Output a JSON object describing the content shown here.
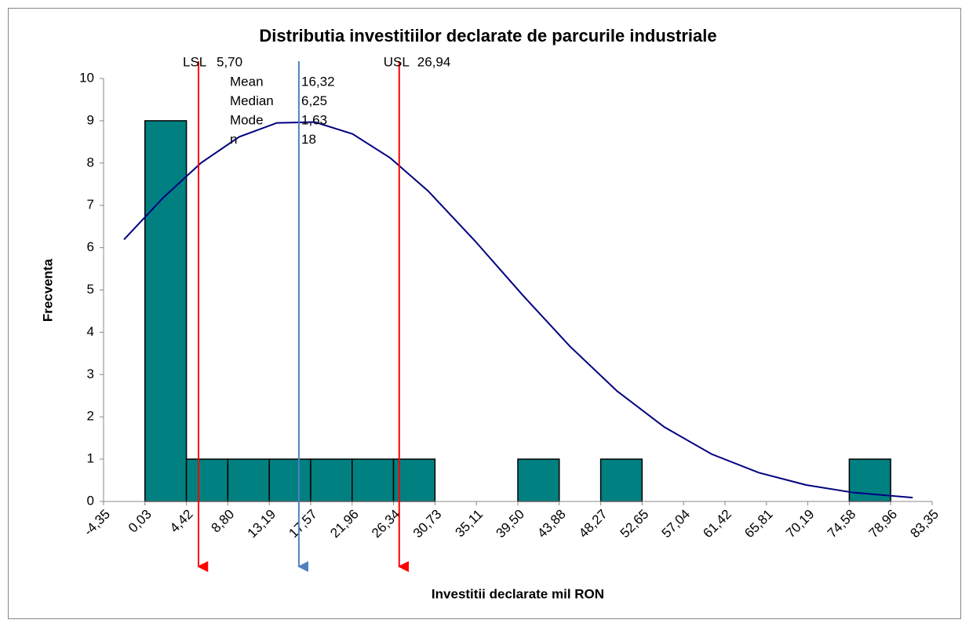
{
  "chart_data": {
    "type": "histogram",
    "title": "Distributia investitiilor declarate de parcurile industriale",
    "x_label": "Investitii declarate mil RON",
    "y_label": "Frecventa",
    "bins": [
      0.03,
      4.42,
      8.8,
      13.19,
      17.57,
      21.96,
      26.34,
      30.73,
      35.11,
      39.5,
      43.88,
      48.27,
      52.65,
      57.04,
      61.42,
      65.81,
      70.19,
      74.58,
      78.96
    ],
    "values": [
      9,
      1,
      1,
      1,
      1,
      1,
      1,
      0,
      0,
      1,
      0,
      1,
      0,
      0,
      0,
      0,
      0,
      1
    ],
    "color": "#008080",
    "curve": {
      "color": "#000080",
      "x": [
        -2.19,
        2,
        6,
        10,
        14,
        18,
        22,
        26,
        30,
        35,
        40,
        45,
        50,
        55,
        60,
        65,
        70,
        75,
        81.3
      ],
      "values": [
        6.19,
        7.19,
        8.01,
        8.62,
        8.95,
        8.97,
        8.69,
        8.12,
        7.34,
        6.15,
        4.88,
        3.67,
        2.61,
        1.76,
        1.12,
        0.68,
        0.39,
        0.21,
        0.09
      ]
    },
    "lines": [
      {
        "name": "LSL",
        "value": 5.7,
        "label": "5,70",
        "color": "#ff0000"
      },
      {
        "name": "USL",
        "value": 26.94,
        "label": "26,94",
        "color": "#ff0000"
      },
      {
        "value": 16.32,
        "color": "#4f81bd"
      }
    ],
    "stats": [
      {
        "name": "Mean",
        "value": "16,32"
      },
      {
        "name": "Median",
        "value": "6,25"
      },
      {
        "name": "Mode",
        "value": "1,63"
      },
      {
        "name": "n",
        "value": "18"
      }
    ],
    "xlim": [
      -4.35,
      83.35
    ],
    "xticks": [
      {
        "value": -4.35,
        "label": "-4,35"
      },
      {
        "value": 0.03,
        "label": "0,03"
      },
      {
        "value": 4.42,
        "label": "4,42"
      },
      {
        "value": 8.8,
        "label": "8,80"
      },
      {
        "value": 13.19,
        "label": "13,19"
      },
      {
        "value": 17.57,
        "label": "17,57"
      },
      {
        "value": 21.96,
        "label": "21,96"
      },
      {
        "value": 26.34,
        "label": "26,34"
      },
      {
        "value": 30.73,
        "label": "30,73"
      },
      {
        "value": 35.11,
        "label": "35,11"
      },
      {
        "value": 39.5,
        "label": "39,50"
      },
      {
        "value": 43.88,
        "label": "43,88"
      },
      {
        "value": 48.27,
        "label": "48,27"
      },
      {
        "value": 52.65,
        "label": "52,65"
      },
      {
        "value": 57.04,
        "label": "57,04"
      },
      {
        "value": 61.42,
        "label": "61,42"
      },
      {
        "value": 65.81,
        "label": "65,81"
      },
      {
        "value": 70.19,
        "label": "70,19"
      },
      {
        "value": 74.58,
        "label": "74,58"
      },
      {
        "value": 78.96,
        "label": "78,96"
      },
      {
        "value": 83.35,
        "label": "83,35"
      }
    ],
    "ylim": [
      0,
      10
    ],
    "yticks": [
      0,
      1,
      2,
      3,
      4,
      5,
      6,
      7,
      8,
      9,
      10
    ]
  }
}
